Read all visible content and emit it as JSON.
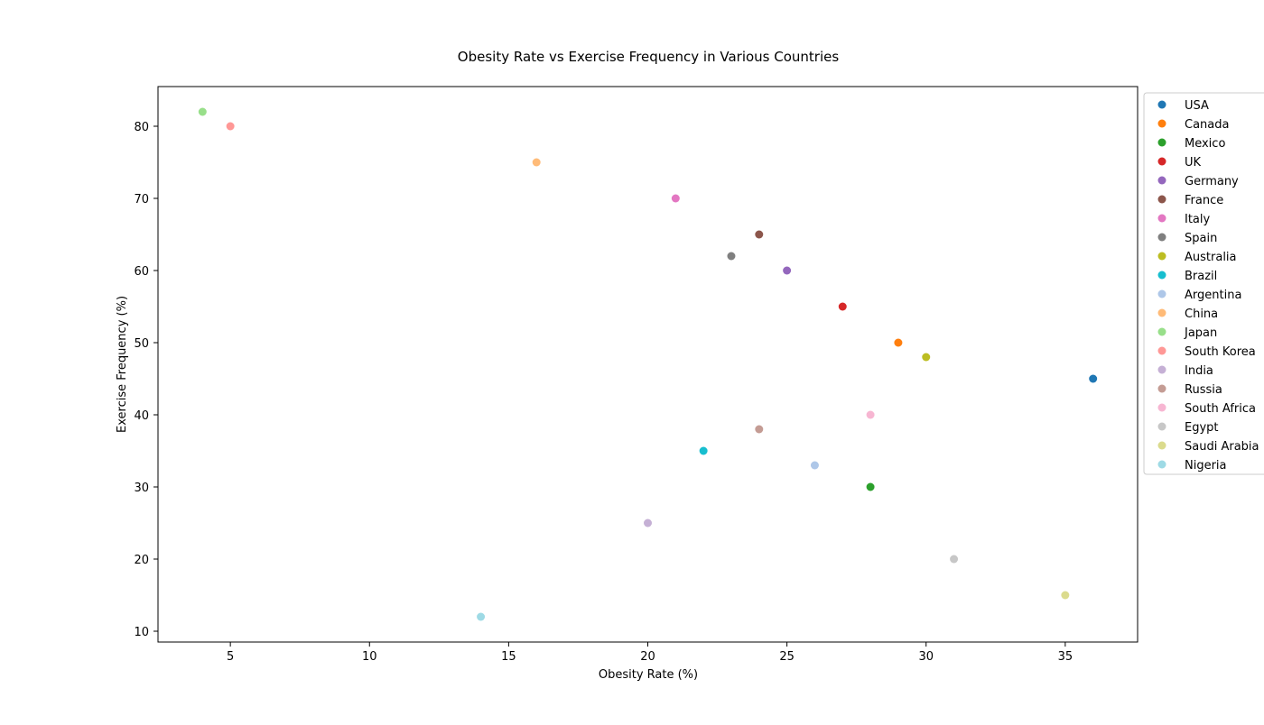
{
  "chart_data": {
    "type": "scatter",
    "title": "Obesity Rate vs Exercise Frequency in Various Countries",
    "xlabel": "Obesity Rate (%)",
    "ylabel": "Exercise Frequency (%)",
    "xlim": [
      2.4,
      37.6
    ],
    "ylim": [
      8.5,
      85.5
    ],
    "xticks": [
      5,
      10,
      15,
      20,
      25,
      30,
      35
    ],
    "yticks": [
      10,
      20,
      30,
      40,
      50,
      60,
      70,
      80
    ],
    "grid": false,
    "legend_position": "outside-right",
    "series": [
      {
        "name": "USA",
        "x": 36,
        "y": 45,
        "color": "#1f77b4"
      },
      {
        "name": "Canada",
        "x": 29,
        "y": 50,
        "color": "#ff7f0e"
      },
      {
        "name": "Mexico",
        "x": 28,
        "y": 30,
        "color": "#2ca02c"
      },
      {
        "name": "UK",
        "x": 27,
        "y": 55,
        "color": "#d62728"
      },
      {
        "name": "Germany",
        "x": 25,
        "y": 60,
        "color": "#9467bd"
      },
      {
        "name": "France",
        "x": 24,
        "y": 65,
        "color": "#8c564b"
      },
      {
        "name": "Italy",
        "x": 21,
        "y": 70,
        "color": "#e377c2"
      },
      {
        "name": "Spain",
        "x": 23,
        "y": 62,
        "color": "#7f7f7f"
      },
      {
        "name": "Australia",
        "x": 30,
        "y": 48,
        "color": "#bcbd22"
      },
      {
        "name": "Brazil",
        "x": 22,
        "y": 35,
        "color": "#17becf"
      },
      {
        "name": "Argentina",
        "x": 26,
        "y": 33,
        "color": "#aec7e8"
      },
      {
        "name": "China",
        "x": 16,
        "y": 75,
        "color": "#ffbb78"
      },
      {
        "name": "Japan",
        "x": 4,
        "y": 82,
        "color": "#98df8a"
      },
      {
        "name": "South Korea",
        "x": 5,
        "y": 80,
        "color": "#ff9896"
      },
      {
        "name": "India",
        "x": 20,
        "y": 25,
        "color": "#c5b0d5"
      },
      {
        "name": "Russia",
        "x": 24,
        "y": 38,
        "color": "#c49c94"
      },
      {
        "name": "South Africa",
        "x": 28,
        "y": 40,
        "color": "#f7b6d2"
      },
      {
        "name": "Egypt",
        "x": 31,
        "y": 20,
        "color": "#c7c7c7"
      },
      {
        "name": "Saudi Arabia",
        "x": 35,
        "y": 15,
        "color": "#dbdb8d"
      },
      {
        "name": "Nigeria",
        "x": 14,
        "y": 12,
        "color": "#9edae5"
      }
    ]
  }
}
